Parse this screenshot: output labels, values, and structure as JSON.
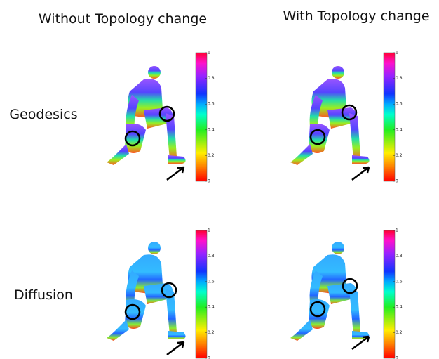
{
  "columns": [
    "Without Topology change",
    "With Topology change"
  ],
  "rows": [
    "Geodesics",
    "Diffusion"
  ],
  "colorbar": {
    "ticks": [
      0,
      0.2,
      0.4,
      0.6,
      0.8,
      1
    ]
  }
}
